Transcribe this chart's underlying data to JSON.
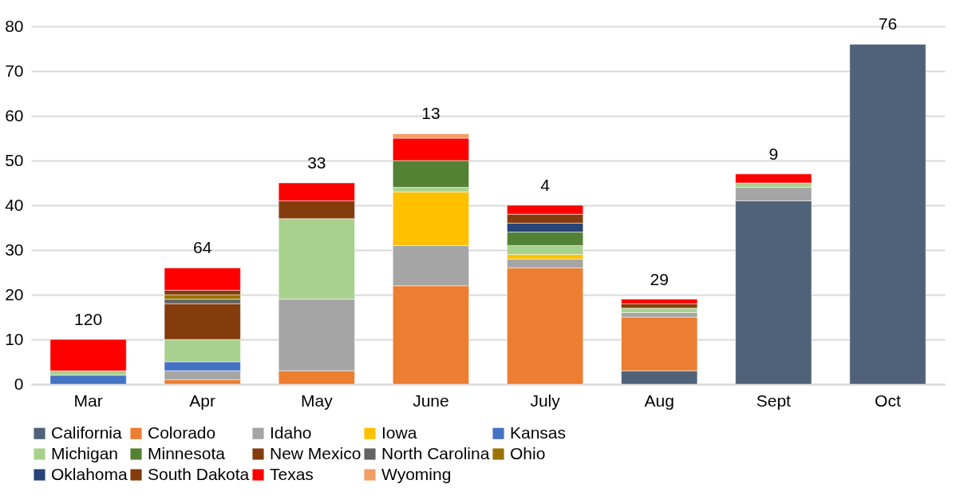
{
  "chart_data": {
    "type": "bar",
    "stacked": true,
    "categories": [
      "Mar",
      "Apr",
      "May",
      "June",
      "July",
      "Aug",
      "Sept",
      "Oct"
    ],
    "series": [
      {
        "name": "California",
        "color": "#506279",
        "values": [
          null,
          null,
          null,
          null,
          null,
          3,
          41,
          76
        ]
      },
      {
        "name": "Colorado",
        "color": "#ed7d31",
        "values": [
          null,
          1,
          3,
          22,
          26,
          12,
          null,
          null
        ]
      },
      {
        "name": "Idaho",
        "color": "#a5a5a5",
        "values": [
          null,
          2,
          16,
          9,
          2,
          1,
          3,
          null
        ]
      },
      {
        "name": "Iowa",
        "color": "#ffc000",
        "values": [
          null,
          null,
          null,
          12,
          1,
          null,
          null,
          null
        ]
      },
      {
        "name": "Kansas",
        "color": "#4472c4",
        "values": [
          2,
          2,
          null,
          null,
          null,
          null,
          null,
          null
        ]
      },
      {
        "name": "Michigan",
        "color": "#a9d18e",
        "values": [
          1,
          5,
          18,
          1,
          2,
          1,
          1,
          null
        ]
      },
      {
        "name": "Minnesota",
        "color": "#548235",
        "values": [
          null,
          null,
          null,
          6,
          3,
          null,
          null,
          null
        ]
      },
      {
        "name": "New Mexico",
        "color": "#843c0c",
        "values": [
          null,
          8,
          null,
          null,
          null,
          null,
          null,
          null
        ]
      },
      {
        "name": "North Carolina",
        "color": "#636363",
        "values": [
          null,
          1,
          null,
          null,
          null,
          null,
          null,
          null
        ]
      },
      {
        "name": "Ohio",
        "color": "#997300",
        "values": [
          null,
          1,
          null,
          null,
          null,
          null,
          null,
          null
        ]
      },
      {
        "name": "Oklahoma",
        "color": "#264478",
        "values": [
          null,
          null,
          null,
          null,
          2,
          null,
          null,
          null
        ]
      },
      {
        "name": "South Dakota",
        "color": "#843c0c",
        "values": [
          null,
          1,
          4,
          null,
          2,
          1,
          null,
          null
        ]
      },
      {
        "name": "Texas",
        "color": "#ff0000",
        "values": [
          7,
          5,
          4,
          5,
          2,
          1,
          2,
          null
        ]
      },
      {
        "name": "Wyoming",
        "color": "#f19e65",
        "values": [
          null,
          null,
          null,
          1,
          null,
          null,
          null,
          null
        ]
      }
    ],
    "ylim": [
      0,
      80
    ],
    "yticks": [
      0,
      10,
      20,
      30,
      40,
      50,
      60,
      70,
      80
    ],
    "grid": "y",
    "legend": "bottom",
    "annotations": [
      {
        "text": "120",
        "x": "Mar",
        "y": 10
      },
      {
        "text": "64",
        "x": "Apr",
        "y": 26
      },
      {
        "text": "33",
        "x": "May",
        "y": 45
      },
      {
        "text": "13",
        "x": "June",
        "y": 56
      },
      {
        "text": "4",
        "x": "July",
        "y": 40
      },
      {
        "text": "29",
        "x": "Aug",
        "y": 19
      },
      {
        "text": "9",
        "x": "Sept",
        "y": 47
      },
      {
        "text": "76",
        "x": "Oct",
        "y": 76
      }
    ]
  }
}
